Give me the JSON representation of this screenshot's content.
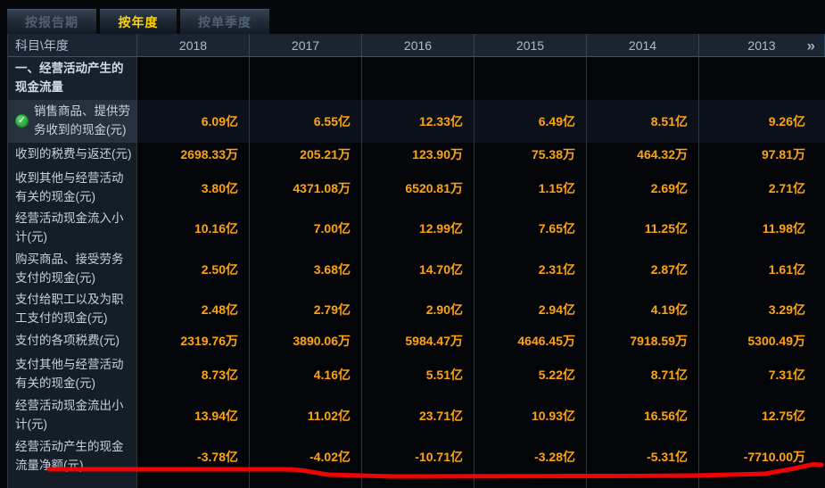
{
  "tabs": [
    {
      "label": "按报告期",
      "active": false
    },
    {
      "label": "按年度",
      "active": true
    },
    {
      "label": "按单季度",
      "active": false
    }
  ],
  "table": {
    "corner_header": "科目\\年度",
    "year_columns": [
      "2018",
      "2017",
      "2016",
      "2015",
      "2014",
      "2013"
    ],
    "more_icon": "»",
    "rows": [
      {
        "type": "section",
        "label": "一、经营活动产生的现金流量",
        "checked": false,
        "values": [
          "",
          "",
          "",
          "",
          "",
          ""
        ]
      },
      {
        "type": "data",
        "label": "销售商品、提供劳务收到的现金(元)",
        "checked": true,
        "highlighted": true,
        "values": [
          "6.09亿",
          "6.55亿",
          "12.33亿",
          "6.49亿",
          "8.51亿",
          "9.26亿"
        ]
      },
      {
        "type": "data",
        "label": "收到的税费与返还(元)",
        "checked": false,
        "values": [
          "2698.33万",
          "205.21万",
          "123.90万",
          "75.38万",
          "464.32万",
          "97.81万"
        ]
      },
      {
        "type": "data",
        "label": "收到其他与经营活动有关的现金(元)",
        "checked": false,
        "values": [
          "3.80亿",
          "4371.08万",
          "6520.81万",
          "1.15亿",
          "2.69亿",
          "2.71亿"
        ]
      },
      {
        "type": "data",
        "label": "经营活动现金流入小计(元)",
        "checked": false,
        "values": [
          "10.16亿",
          "7.00亿",
          "12.99亿",
          "7.65亿",
          "11.25亿",
          "11.98亿"
        ]
      },
      {
        "type": "data",
        "label": "购买商品、接受劳务支付的现金(元)",
        "checked": false,
        "values": [
          "2.50亿",
          "3.68亿",
          "14.70亿",
          "2.31亿",
          "2.87亿",
          "1.61亿"
        ]
      },
      {
        "type": "data",
        "label": "支付给职工以及为职工支付的现金(元)",
        "checked": false,
        "values": [
          "2.48亿",
          "2.79亿",
          "2.90亿",
          "2.94亿",
          "4.19亿",
          "3.29亿"
        ]
      },
      {
        "type": "data",
        "label": "支付的各项税费(元)",
        "checked": false,
        "values": [
          "2319.76万",
          "3890.06万",
          "5984.47万",
          "4646.45万",
          "7918.59万",
          "5300.49万"
        ]
      },
      {
        "type": "data",
        "label": "支付其他与经营活动有关的现金(元)",
        "checked": false,
        "values": [
          "8.73亿",
          "4.16亿",
          "5.51亿",
          "5.22亿",
          "8.71亿",
          "7.31亿"
        ]
      },
      {
        "type": "data",
        "label": "经营活动现金流出小计(元)",
        "checked": false,
        "values": [
          "13.94亿",
          "11.02亿",
          "23.71亿",
          "10.93亿",
          "16.56亿",
          "12.75亿"
        ]
      },
      {
        "type": "data",
        "label": "经营活动产生的现金流量净额(元)",
        "checked": false,
        "values": [
          "-3.78亿",
          "-4.02亿",
          "-10.71亿",
          "-3.28亿",
          "-5.31亿",
          "-7710.00万"
        ]
      }
    ]
  },
  "icons": {
    "check": "✓"
  },
  "annotation": {
    "type": "hand-drawn-red-underline",
    "color": "#ec0505"
  },
  "colors": {
    "value_orange": "#ffa30f",
    "tab_active_text": "#ffd400",
    "header_bg": "#1b2531",
    "label_bg": "#151d27",
    "grid_line": "#26384a",
    "check_green": "#1d9a34"
  }
}
